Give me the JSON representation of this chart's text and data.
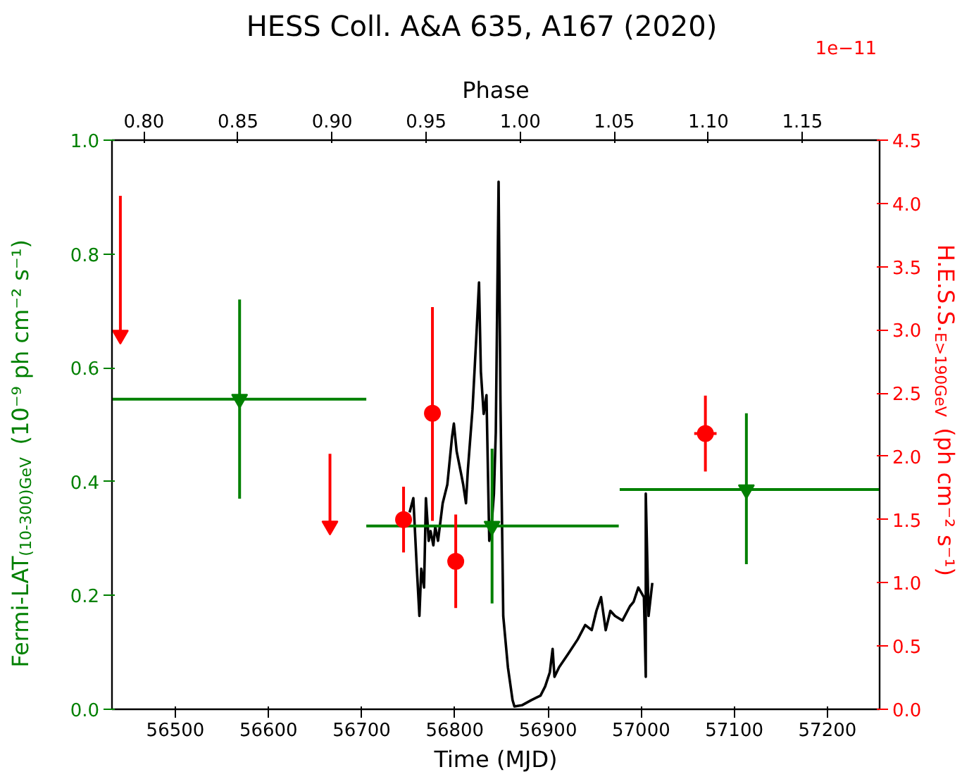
{
  "chart_data": {
    "type": "scatter",
    "title": "HESS Coll. A&A 635, A167 (2020)",
    "xlabel": "Time (MJD)",
    "x2label": "Phase",
    "ylabel": "Fermi-LAT$_{(10-300)GeV}$ (10⁻⁹ ph cm⁻² s⁻¹)",
    "y2label": "H.E.S.S.$_{E>190GeV}$ (ph cm⁻² s⁻¹)",
    "annotations": [
      "1e−11"
    ],
    "xlim": [
      56432,
      57256
    ],
    "xticks": [
      56500,
      56600,
      56700,
      56800,
      56900,
      57000,
      57100,
      57200
    ],
    "x2lim": [
      0.783,
      1.191
    ],
    "x2ticks": [
      {
        "value": 0.8,
        "label": "0.80"
      },
      {
        "value": 0.85,
        "label": "0.85"
      },
      {
        "value": 0.9,
        "label": "0.90"
      },
      {
        "value": 0.95,
        "label": "0.95"
      },
      {
        "value": 1.0,
        "label": "1.00"
      },
      {
        "value": 1.05,
        "label": "1.05"
      },
      {
        "value": 1.1,
        "label": "1.10"
      },
      {
        "value": 1.15,
        "label": "1.15"
      }
    ],
    "ylim": [
      0,
      1
    ],
    "yticks": [
      {
        "value": 0,
        "label": "0.0"
      },
      {
        "value": 0.2,
        "label": "0.2"
      },
      {
        "value": 0.4,
        "label": "0.4"
      },
      {
        "value": 0.6,
        "label": "0.6"
      },
      {
        "value": 0.8,
        "label": "0.8"
      },
      {
        "value": 1.0,
        "label": "1.0"
      }
    ],
    "y2lim": [
      0,
      4.5
    ],
    "y2ticks": [
      {
        "value": 0,
        "label": "0.0"
      },
      {
        "value": 0.5,
        "label": "0.5"
      },
      {
        "value": 1.0,
        "label": "1.0"
      },
      {
        "value": 1.5,
        "label": "1.5"
      },
      {
        "value": 2.0,
        "label": "2.0"
      },
      {
        "value": 2.5,
        "label": "2.5"
      },
      {
        "value": 3.0,
        "label": "3.0"
      },
      {
        "value": 3.5,
        "label": "3.5"
      },
      {
        "value": 4.0,
        "label": "4.0"
      },
      {
        "value": 4.5,
        "label": "4.5"
      }
    ],
    "grid": false,
    "series": [
      {
        "type": "line",
        "axis": "y",
        "color": "#000000",
        "line_style": "solid",
        "x": [
          56751.5,
          56755.5,
          56759,
          56762,
          56764,
          56767,
          56769,
          56772,
          56774,
          56777,
          56779,
          56782,
          56787,
          56792,
          56797,
          56799,
          56802,
          56807,
          56809,
          56812,
          56814,
          56819,
          56823,
          56826,
          56828,
          56831,
          56834,
          56837,
          56839,
          56842,
          56844,
          56847,
          56849,
          56852,
          56857,
          56862,
          56864,
          56872,
          56882,
          56892,
          56897,
          56902,
          56905,
          56907,
          56912,
          56922,
          56932,
          56940,
          56947,
          56952,
          56957,
          56962,
          56967,
          56972,
          56980,
          56988,
          56992,
          56997,
          57003,
          57005,
          57005,
          57008,
          57012
        ],
        "values": [
          0.346,
          0.371,
          0.255,
          0.164,
          0.247,
          0.214,
          0.371,
          0.296,
          0.313,
          0.288,
          0.321,
          0.296,
          0.362,
          0.395,
          0.478,
          0.502,
          0.453,
          0.412,
          0.395,
          0.362,
          0.42,
          0.527,
          0.651,
          0.75,
          0.593,
          0.519,
          0.552,
          0.296,
          0.313,
          0.379,
          0.486,
          0.927,
          0.544,
          0.164,
          0.074,
          0.016,
          0.005,
          0.007,
          0.016,
          0.024,
          0.04,
          0.065,
          0.106,
          0.057,
          0.074,
          0.098,
          0.123,
          0.148,
          0.139,
          0.173,
          0.197,
          0.139,
          0.173,
          0.164,
          0.156,
          0.181,
          0.189,
          0.214,
          0.197,
          0.057,
          0.379,
          0.164,
          0.222
        ]
      },
      {
        "axis": "y",
        "color": "#008000",
        "marker": "triangle_down",
        "x": [
          56569,
          56840,
          57113
        ],
        "values": [
          0.545,
          0.322,
          0.386
        ],
        "errors": [
          [
            0.37,
            0.72
          ],
          [
            0.186,
            0.458
          ],
          [
            0.255,
            0.52
          ]
        ],
        "xerrors": [
          [
            56432,
            56705
          ],
          [
            56705,
            56976
          ],
          [
            56977,
            57256
          ]
        ]
      },
      {
        "axis": "y2",
        "color": "#ff0000",
        "marker": "circle",
        "x": [
          56745,
          56776,
          56801,
          57069
        ],
        "values": [
          1.5,
          2.34,
          1.17,
          2.18
        ],
        "errors": [
          [
            1.24,
            1.76
          ],
          [
            1.49,
            3.18
          ],
          [
            0.8,
            1.54
          ],
          [
            1.88,
            2.48
          ]
        ],
        "xerrors": [
          [
            56737,
            56753
          ],
          null,
          null,
          [
            57057,
            57081
          ]
        ]
      },
      {
        "axis": "y2",
        "color": "#ff0000",
        "marker": "triangle_down",
        "x": [
          56441,
          56666
        ],
        "values": [
          2.96,
          1.45
        ],
        "errors": [
          [
            2.96,
            4.06
          ],
          [
            1.45,
            2.02
          ]
        ]
      }
    ]
  }
}
